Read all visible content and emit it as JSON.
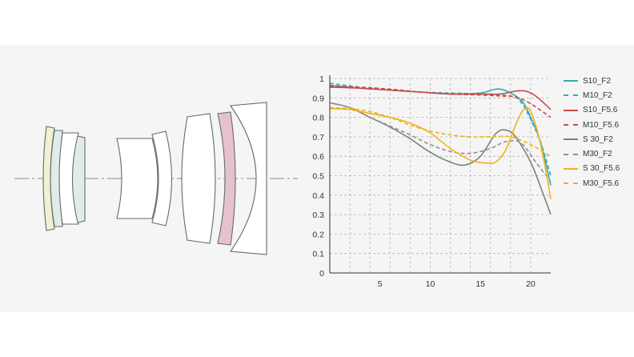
{
  "colors": {
    "background": "#f5f5f5",
    "lens_stroke": "#5f6b75",
    "lens_fill": "#ffffff",
    "optical_axis": "#8a8a8a",
    "element_yellow": "#f3efd2",
    "element_green": "#e2ebe6",
    "element_pink": "#e7c2cb",
    "grid": "#b5b5b5"
  },
  "chart_data": {
    "type": "line",
    "title": "",
    "xlabel": "",
    "ylabel": "",
    "xlim": [
      0,
      22
    ],
    "ylim": [
      0,
      1
    ],
    "xticks": [
      5,
      10,
      15,
      20
    ],
    "yticks": [
      0,
      0.1,
      0.2,
      0.3,
      0.4,
      0.5,
      0.6,
      0.7,
      0.8,
      0.9,
      1
    ],
    "ytick_labels": [
      "0",
      "0.1",
      "0.2",
      "0.3",
      "0.4",
      "0.5",
      "0.6",
      "0.7",
      "0.8",
      "0.9",
      "1"
    ],
    "grid": true,
    "legend_position": "right",
    "series": [
      {
        "name": "S10_F2",
        "color": "#3aa8b7",
        "dash": "solid",
        "x": [
          0,
          3,
          6,
          9,
          12,
          15,
          17,
          19,
          20,
          21,
          22
        ],
        "y": [
          0.965,
          0.95,
          0.94,
          0.93,
          0.92,
          0.925,
          0.945,
          0.89,
          0.8,
          0.67,
          0.45
        ]
      },
      {
        "name": "M10_F2",
        "color": "#3aa8b7",
        "dash": "dashed",
        "x": [
          0,
          3,
          6,
          9,
          12,
          15,
          18,
          19,
          20,
          21,
          22
        ],
        "y": [
          0.975,
          0.955,
          0.94,
          0.93,
          0.925,
          0.92,
          0.91,
          0.88,
          0.79,
          0.67,
          0.5
        ]
      },
      {
        "name": "S10_F5.6",
        "color": "#cc4b45",
        "dash": "solid",
        "x": [
          0,
          3,
          6,
          9,
          12,
          15,
          17,
          18.5,
          19.5,
          20.5,
          22
        ],
        "y": [
          0.955,
          0.95,
          0.94,
          0.93,
          0.92,
          0.92,
          0.92,
          0.935,
          0.935,
          0.91,
          0.84
        ]
      },
      {
        "name": "M10_F5.6",
        "color": "#cc4b45",
        "dash": "dashed",
        "x": [
          0,
          3,
          6,
          9,
          12,
          15,
          17,
          18.5,
          20,
          22
        ],
        "y": [
          0.96,
          0.955,
          0.945,
          0.93,
          0.92,
          0.915,
          0.91,
          0.905,
          0.87,
          0.8
        ]
      },
      {
        "name": "S 30_F2",
        "color": "#7f7f7f",
        "dash": "solid",
        "x": [
          0,
          2,
          4,
          6,
          8,
          10,
          12,
          13.5,
          15,
          16.5,
          17.5,
          18.5,
          20,
          21,
          22
        ],
        "y": [
          0.875,
          0.85,
          0.8,
          0.75,
          0.69,
          0.62,
          0.57,
          0.555,
          0.6,
          0.715,
          0.735,
          0.7,
          0.57,
          0.44,
          0.3
        ]
      },
      {
        "name": "M30_F2",
        "color": "#8f8f8f",
        "dash": "dashed",
        "x": [
          0,
          2,
          4,
          6,
          8,
          10,
          12,
          14,
          16,
          17.5,
          19,
          20.5,
          22
        ],
        "y": [
          0.875,
          0.85,
          0.8,
          0.755,
          0.71,
          0.66,
          0.625,
          0.615,
          0.64,
          0.675,
          0.67,
          0.57,
          0.47
        ]
      },
      {
        "name": "S 30_F5.6",
        "color": "#f0b41a",
        "dash": "solid",
        "x": [
          0,
          2,
          4,
          6,
          8,
          10,
          12,
          14,
          15.5,
          16.5,
          17.5,
          18.5,
          19.3,
          20,
          21,
          22
        ],
        "y": [
          0.845,
          0.84,
          0.82,
          0.8,
          0.77,
          0.72,
          0.64,
          0.58,
          0.565,
          0.57,
          0.63,
          0.76,
          0.84,
          0.83,
          0.66,
          0.38
        ]
      },
      {
        "name": "M30_F5.6",
        "color": "#f0b41a",
        "dash": "dashed",
        "x": [
          0,
          2,
          4,
          6,
          8,
          10,
          12,
          14,
          16,
          18,
          20,
          22
        ],
        "y": [
          0.85,
          0.845,
          0.83,
          0.8,
          0.76,
          0.73,
          0.71,
          0.7,
          0.7,
          0.7,
          0.66,
          0.6
        ]
      }
    ]
  }
}
